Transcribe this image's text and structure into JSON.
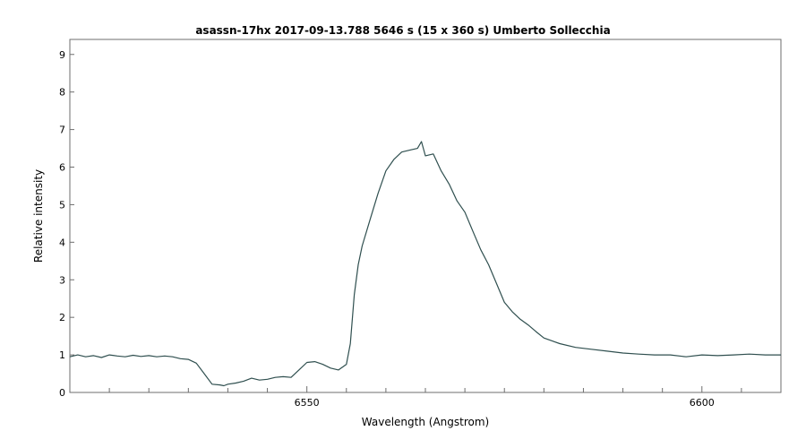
{
  "chart_data": {
    "type": "line",
    "title": "asassn-17hx   2017-09-13.788  5646 s (15 x 360 s)   Umberto Sollecchia",
    "xlabel": "Wavelength (Angstrom)",
    "ylabel": "Relative intensity",
    "xlim": [
      6520,
      6610
    ],
    "ylim": [
      0,
      9.4
    ],
    "x_ticks": [
      6550,
      6600
    ],
    "y_ticks": [
      0,
      1,
      2,
      3,
      4,
      5,
      6,
      7,
      8,
      9
    ],
    "grid": false,
    "series": [
      {
        "color": "#2f4f4f",
        "x": [
          6520.0,
          6521.0,
          6522.0,
          6523.0,
          6524.0,
          6525.0,
          6526.0,
          6527.0,
          6528.0,
          6529.0,
          6530.0,
          6531.0,
          6532.0,
          6533.0,
          6534.0,
          6535.0,
          6536.0,
          6537.0,
          6538.0,
          6539.0,
          6539.5,
          6540.0,
          6541.0,
          6542.0,
          6543.0,
          6544.0,
          6545.0,
          6546.0,
          6547.0,
          6548.0,
          6549.0,
          6550.0,
          6551.0,
          6552.0,
          6553.0,
          6554.0,
          6555.0,
          6555.5,
          6556.0,
          6556.5,
          6557.0,
          6558.0,
          6559.0,
          6560.0,
          6561.0,
          6562.0,
          6563.0,
          6564.0,
          6564.5,
          6565.0,
          6566.0,
          6567.0,
          6568.0,
          6569.0,
          6570.0,
          6571.0,
          6572.0,
          6573.0,
          6574.0,
          6575.0,
          6576.0,
          6577.0,
          6578.0,
          6579.0,
          6580.0,
          6582.0,
          6584.0,
          6586.0,
          6588.0,
          6590.0,
          6592.0,
          6594.0,
          6596.0,
          6598.0,
          6600.0,
          6602.0,
          6604.0,
          6606.0,
          6608.0,
          6610.0
        ],
        "y": [
          0.95,
          1.0,
          0.95,
          0.98,
          0.93,
          1.0,
          0.97,
          0.95,
          0.99,
          0.96,
          0.98,
          0.95,
          0.97,
          0.95,
          0.9,
          0.88,
          0.78,
          0.5,
          0.22,
          0.2,
          0.18,
          0.22,
          0.25,
          0.3,
          0.38,
          0.33,
          0.35,
          0.4,
          0.42,
          0.4,
          0.6,
          0.8,
          0.82,
          0.75,
          0.65,
          0.6,
          0.75,
          1.3,
          2.6,
          3.4,
          3.9,
          4.6,
          5.3,
          5.9,
          6.2,
          6.4,
          6.45,
          6.5,
          6.68,
          6.3,
          6.35,
          5.9,
          5.55,
          5.1,
          4.8,
          4.3,
          3.8,
          3.4,
          2.9,
          2.4,
          2.15,
          1.95,
          1.8,
          1.62,
          1.45,
          1.3,
          1.2,
          1.15,
          1.1,
          1.05,
          1.02,
          1.0,
          1.0,
          0.95,
          1.0,
          0.98,
          1.0,
          1.02,
          1.0,
          1.0
        ]
      }
    ]
  }
}
